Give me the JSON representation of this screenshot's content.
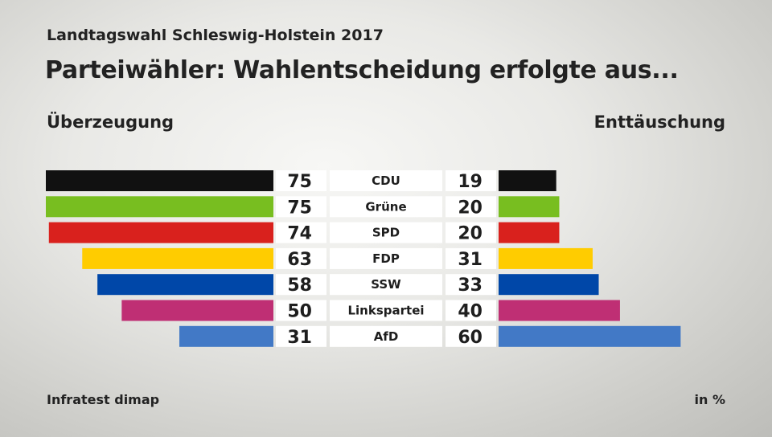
{
  "header": {
    "subtitle": "Landtagswahl Schleswig-Holstein 2017",
    "title": "Parteiwähler: Wahlentscheidung erfolgte aus..."
  },
  "footer": {
    "source": "Infratest dimap",
    "unit": "in %"
  },
  "chart_data": {
    "type": "bar",
    "title": "Parteiwähler: Wahlentscheidung erfolgte aus...",
    "subtitle": "Landtagswahl Schleswig-Holstein 2017",
    "unit": "in %",
    "categories": [
      "CDU",
      "Grüne",
      "SPD",
      "FDP",
      "SSW",
      "Linkspartei",
      "AfD"
    ],
    "colors": [
      "#111111",
      "#78be20",
      "#d9211d",
      "#ffcc00",
      "#0047a8",
      "#bf2f74",
      "#4279c6"
    ],
    "series": [
      {
        "name": "Überzeugung",
        "side": "left",
        "values": [
          75,
          75,
          74,
          63,
          58,
          50,
          31
        ]
      },
      {
        "name": "Enttäuschung",
        "side": "right",
        "values": [
          19,
          20,
          20,
          31,
          33,
          40,
          60
        ]
      }
    ],
    "xlim": [
      0,
      75
    ]
  }
}
